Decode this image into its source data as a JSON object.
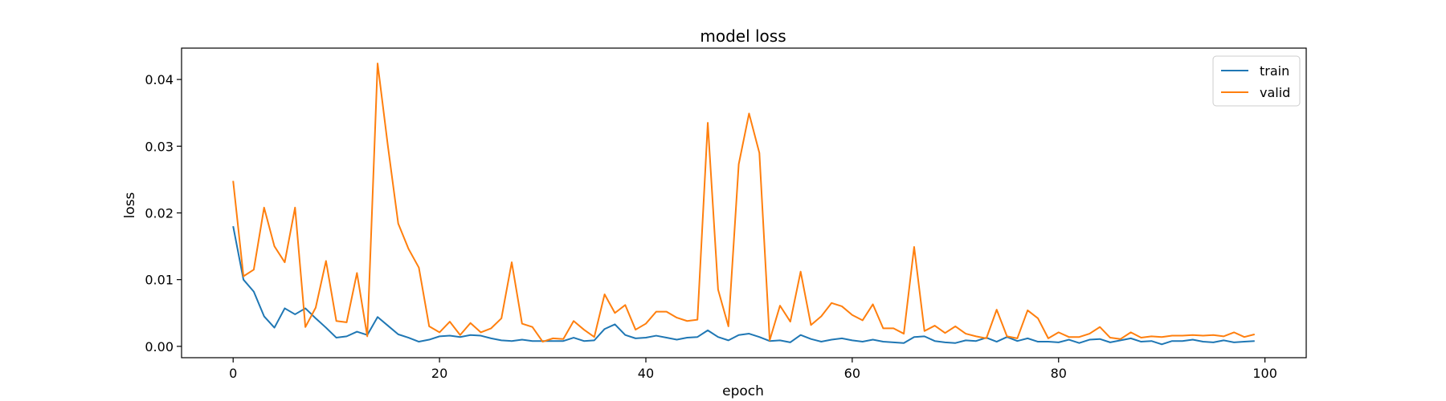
{
  "chart_data": {
    "type": "line",
    "title": "model loss",
    "xlabel": "epoch",
    "ylabel": "loss",
    "xlim": [
      -5,
      104
    ],
    "ylim": [
      -0.0017,
      0.0447
    ],
    "xticks": [
      0,
      20,
      40,
      60,
      80,
      100
    ],
    "xtick_labels": [
      "0",
      "20",
      "40",
      "60",
      "80",
      "100"
    ],
    "yticks": [
      0.0,
      0.01,
      0.02,
      0.03,
      0.04
    ],
    "ytick_labels": [
      "0.00",
      "0.01",
      "0.02",
      "0.03",
      "0.04"
    ],
    "grid": false,
    "legend_position": "top-right",
    "x": [
      0,
      1,
      2,
      3,
      4,
      5,
      6,
      7,
      8,
      9,
      10,
      11,
      12,
      13,
      14,
      15,
      16,
      17,
      18,
      19,
      20,
      21,
      22,
      23,
      24,
      25,
      26,
      27,
      28,
      29,
      30,
      31,
      32,
      33,
      34,
      35,
      36,
      37,
      38,
      39,
      40,
      41,
      42,
      43,
      44,
      45,
      46,
      47,
      48,
      49,
      50,
      51,
      52,
      53,
      54,
      55,
      56,
      57,
      58,
      59,
      60,
      61,
      62,
      63,
      64,
      65,
      66,
      67,
      68,
      69,
      70,
      71,
      72,
      73,
      74,
      75,
      76,
      77,
      78,
      79,
      80,
      81,
      82,
      83,
      84,
      85,
      86,
      87,
      88,
      89,
      90,
      91,
      92,
      93,
      94,
      95,
      96,
      97,
      98,
      99
    ],
    "series": [
      {
        "name": "train",
        "color": "#1f77b4",
        "values": [
          0.018,
          0.01,
          0.0082,
          0.0045,
          0.0028,
          0.0057,
          0.0048,
          0.0057,
          0.0042,
          0.0028,
          0.0013,
          0.0015,
          0.0022,
          0.0017,
          0.0044,
          0.0031,
          0.0018,
          0.0013,
          0.0007,
          0.001,
          0.0015,
          0.0016,
          0.0014,
          0.0017,
          0.0016,
          0.0012,
          0.0009,
          0.0008,
          0.001,
          0.0008,
          0.0008,
          0.0008,
          0.0008,
          0.0013,
          0.0008,
          0.0009,
          0.0026,
          0.0033,
          0.0017,
          0.0012,
          0.0013,
          0.0016,
          0.0013,
          0.001,
          0.0013,
          0.0014,
          0.0024,
          0.0014,
          0.0009,
          0.0017,
          0.0019,
          0.0014,
          0.0008,
          0.0009,
          0.0006,
          0.0017,
          0.0011,
          0.0007,
          0.001,
          0.0012,
          0.0009,
          0.0007,
          0.001,
          0.0007,
          0.0006,
          0.0005,
          0.0014,
          0.0015,
          0.0008,
          0.0006,
          0.0005,
          0.0009,
          0.0008,
          0.0013,
          0.0007,
          0.0014,
          0.0008,
          0.0012,
          0.0007,
          0.0007,
          0.0006,
          0.001,
          0.0005,
          0.001,
          0.0011,
          0.0006,
          0.0009,
          0.0012,
          0.0007,
          0.0008,
          0.0003,
          0.0008,
          0.0008,
          0.001,
          0.0007,
          0.0006,
          0.0009,
          0.0006,
          0.0007,
          0.0008
        ]
      },
      {
        "name": "valid",
        "color": "#ff7f0e",
        "values": [
          0.0248,
          0.0105,
          0.0115,
          0.0208,
          0.015,
          0.0126,
          0.0208,
          0.0029,
          0.0058,
          0.0128,
          0.0038,
          0.0036,
          0.011,
          0.0015,
          0.0424,
          0.03,
          0.0184,
          0.0146,
          0.0118,
          0.003,
          0.0021,
          0.0037,
          0.0017,
          0.0035,
          0.0021,
          0.0027,
          0.0042,
          0.0126,
          0.0034,
          0.0029,
          0.0007,
          0.0012,
          0.0011,
          0.0038,
          0.0025,
          0.0014,
          0.0078,
          0.005,
          0.0062,
          0.0025,
          0.0034,
          0.0052,
          0.0052,
          0.0043,
          0.0038,
          0.004,
          0.0335,
          0.0085,
          0.003,
          0.0273,
          0.0349,
          0.029,
          0.0009,
          0.0061,
          0.0037,
          0.0112,
          0.0032,
          0.0045,
          0.0065,
          0.006,
          0.0047,
          0.0039,
          0.0063,
          0.0027,
          0.0027,
          0.0019,
          0.0149,
          0.0023,
          0.0031,
          0.002,
          0.003,
          0.0019,
          0.0015,
          0.0012,
          0.0055,
          0.0015,
          0.0012,
          0.0054,
          0.0042,
          0.0012,
          0.0021,
          0.0014,
          0.0014,
          0.0019,
          0.0029,
          0.0013,
          0.0011,
          0.0021,
          0.0013,
          0.0015,
          0.0014,
          0.0016,
          0.0016,
          0.0017,
          0.0016,
          0.0017,
          0.0015,
          0.0021,
          0.0014,
          0.0018
        ]
      }
    ]
  }
}
